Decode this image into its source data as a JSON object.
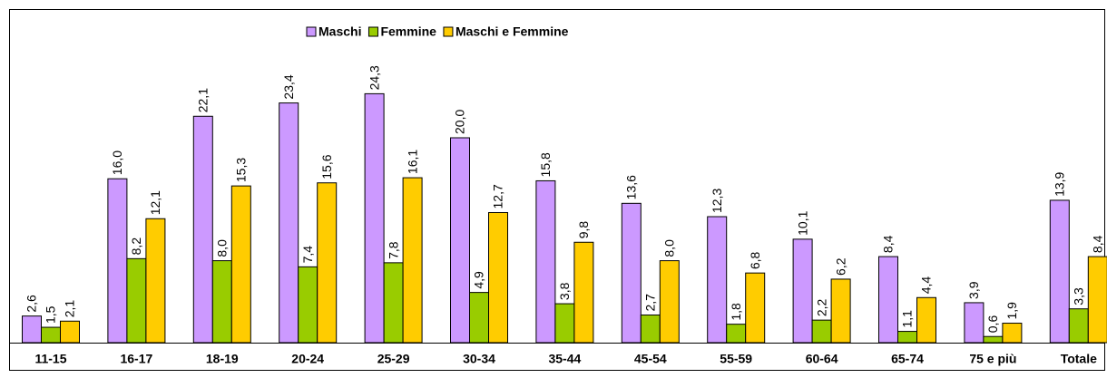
{
  "chart_data": {
    "type": "bar",
    "categories": [
      "11-15",
      "16-17",
      "18-19",
      "20-24",
      "25-29",
      "30-34",
      "35-44",
      "45-54",
      "55-59",
      "60-64",
      "65-74",
      "75 e più",
      "Totale"
    ],
    "series": [
      {
        "name": "Maschi",
        "color": "#cc99ff",
        "values": [
          2.6,
          16.0,
          22.1,
          23.4,
          24.3,
          20.0,
          15.8,
          13.6,
          12.3,
          10.1,
          8.4,
          3.9,
          13.9
        ],
        "value_labels": [
          "2,6",
          "16,0",
          "22,1",
          "23,4",
          "24,3",
          "20,0",
          "15,8",
          "13,6",
          "12,3",
          "10,1",
          "8,4",
          "3,9",
          "13,9"
        ]
      },
      {
        "name": "Femmine",
        "color": "#99cc00",
        "values": [
          1.5,
          8.2,
          8.0,
          7.4,
          7.8,
          4.9,
          3.8,
          2.7,
          1.8,
          2.2,
          1.1,
          0.6,
          3.3
        ],
        "value_labels": [
          "1,5",
          "8,2",
          "8,0",
          "7,4",
          "7,8",
          "4,9",
          "3,8",
          "2,7",
          "1,8",
          "2,2",
          "1,1",
          "0,6",
          "3,3"
        ]
      },
      {
        "name": "Maschi e Femmine",
        "color": "#ffcc00",
        "values": [
          2.1,
          12.1,
          15.3,
          15.6,
          16.1,
          12.7,
          9.8,
          8.0,
          6.8,
          6.2,
          4.4,
          1.9,
          8.4
        ],
        "value_labels": [
          "2,1",
          "12,1",
          "15,3",
          "15,6",
          "16,1",
          "12,7",
          "9,8",
          "8,0",
          "6,8",
          "6,2",
          "4,4",
          "1,9",
          "8,4"
        ]
      }
    ],
    "legend": "top"
  }
}
